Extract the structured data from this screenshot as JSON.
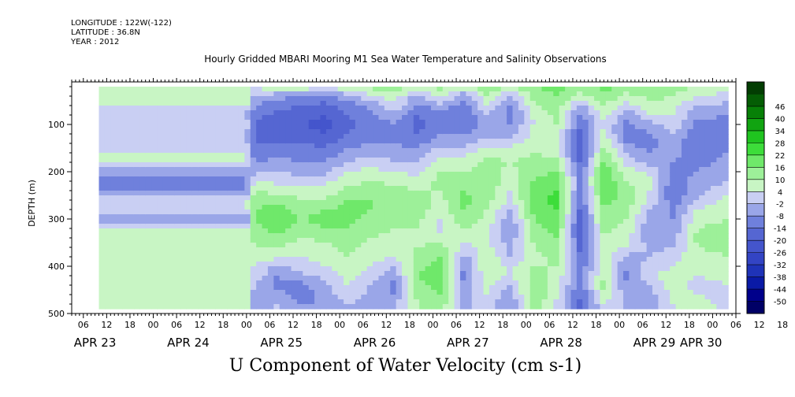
{
  "meta": {
    "longitude": "LONGITUDE : 122W(-122)",
    "latitude": "LATITUDE : 36.8N",
    "year": "YEAR : 2012"
  },
  "chart_data": {
    "type": "heatmap",
    "title": "Hourly Gridded MBARI Mooring M1 Sea Water Temperature and Salinity Observations",
    "xlabel": "U Component of Water Velocity (cm s-1)",
    "ylabel": "DEPTH (m)",
    "x_unit": "hours since APR 23 00:00 (2012)",
    "xlim": [
      3,
      174
    ],
    "ylim": [
      500,
      10
    ],
    "y_ticks": [
      100,
      200,
      300,
      400,
      500
    ],
    "x_hour_ticks": [
      "06",
      "12",
      "18",
      "00",
      "06",
      "12",
      "18",
      "00",
      "06",
      "12",
      "18",
      "00",
      "06",
      "12",
      "18",
      "00",
      "06",
      "12",
      "18",
      "00",
      "06",
      "12",
      "18",
      "00",
      "06",
      "12",
      "18",
      "00",
      "06",
      "12",
      "18",
      "00",
      "06"
    ],
    "x_date_labels": [
      {
        "label": "APR 23",
        "hour": 9
      },
      {
        "label": "APR 24",
        "hour": 33
      },
      {
        "label": "APR 25",
        "hour": 57
      },
      {
        "label": "APR 26",
        "hour": 81
      },
      {
        "label": "APR 27",
        "hour": 105
      },
      {
        "label": "APR 28",
        "hour": 129
      },
      {
        "label": "APR 29",
        "hour": 153
      },
      {
        "label": "APR 30",
        "hour": 165
      }
    ],
    "colorbar": {
      "levels": [
        -50,
        -44,
        -38,
        -32,
        -26,
        -20,
        -14,
        -8,
        -2,
        4,
        10,
        16,
        22,
        28,
        34,
        40,
        46
      ],
      "colors": [
        "#000066",
        "#00008b",
        "#0a1aa6",
        "#1f33b8",
        "#3344c4",
        "#4455cc",
        "#5566d2",
        "#6f80dc",
        "#9aa6e8",
        "#c9cff3",
        "#c8f5c4",
        "#9df099",
        "#6fe86a",
        "#3ddd3a",
        "#1fc41f",
        "#11a411",
        "#078007",
        "#045d04",
        "#023d02"
      ]
    },
    "data_range": {
      "x_start": 10,
      "x_end": 172,
      "depth_top": 20,
      "depth_bottom": 485
    },
    "profiles": [
      {
        "hour": 10,
        "u": [
          5,
          7,
          6,
          -3,
          2,
          -1,
          -2,
          5,
          6,
          -7,
          -9,
          -10,
          4,
          2,
          -8,
          4,
          7,
          6,
          6,
          5,
          6,
          6,
          5,
          7,
          7
        ]
      },
      {
        "hour": 48,
        "u": [
          5,
          7,
          6,
          -3,
          2,
          -1,
          -2,
          5,
          6,
          -7,
          -9,
          -10,
          4,
          2,
          -8,
          4,
          7,
          6,
          6,
          5,
          6,
          6,
          5,
          7,
          7
        ]
      },
      {
        "hour": 50,
        "u": [
          6,
          -3,
          -8,
          -12,
          -15,
          -16,
          -15,
          -12,
          -8,
          -3,
          4,
          10,
          14,
          16,
          16,
          15,
          12,
          10,
          8,
          4,
          2,
          -2,
          -4,
          -6,
          -5
        ]
      },
      {
        "hour": 56,
        "u": [
          8,
          -6,
          -12,
          -16,
          -18,
          -17,
          -14,
          -10,
          -6,
          -2,
          2,
          8,
          14,
          18,
          20,
          18,
          14,
          10,
          6,
          -4,
          -8,
          -10,
          -6,
          -2,
          2
        ]
      },
      {
        "hour": 62,
        "u": [
          10,
          -8,
          -14,
          -18,
          -20,
          -18,
          -14,
          -10,
          -8,
          -4,
          2,
          6,
          10,
          14,
          16,
          14,
          10,
          6,
          4,
          2,
          -4,
          -10,
          -12,
          -8,
          -4
        ]
      },
      {
        "hour": 68,
        "u": [
          6,
          -10,
          -16,
          -20,
          -22,
          -20,
          -16,
          -12,
          -8,
          -4,
          2,
          6,
          10,
          16,
          18,
          16,
          12,
          8,
          6,
          4,
          0,
          -4,
          -6,
          -8,
          -6
        ]
      },
      {
        "hour": 74,
        "u": [
          8,
          -4,
          -12,
          -14,
          -16,
          -14,
          -10,
          -6,
          -2,
          4,
          8,
          12,
          16,
          18,
          18,
          16,
          14,
          12,
          10,
          8,
          6,
          4,
          2,
          -2,
          -4
        ]
      },
      {
        "hour": 80,
        "u": [
          12,
          4,
          -6,
          -10,
          -12,
          -10,
          -8,
          -4,
          2,
          6,
          10,
          14,
          16,
          16,
          14,
          12,
          10,
          8,
          6,
          4,
          2,
          -2,
          -4,
          -6,
          -4
        ]
      },
      {
        "hour": 86,
        "u": [
          14,
          8,
          2,
          -4,
          -8,
          -10,
          -8,
          -6,
          -2,
          4,
          8,
          12,
          14,
          14,
          12,
          10,
          8,
          6,
          4,
          -2,
          -6,
          -10,
          -8,
          -4,
          -2
        ]
      },
      {
        "hour": 92,
        "u": [
          10,
          -4,
          -10,
          -14,
          -16,
          -14,
          -10,
          -6,
          -2,
          2,
          6,
          10,
          12,
          14,
          12,
          10,
          8,
          10,
          12,
          14,
          16,
          14,
          12,
          10,
          8
        ]
      },
      {
        "hour": 98,
        "u": [
          12,
          6,
          -4,
          -10,
          -12,
          -8,
          -4,
          2,
          6,
          10,
          12,
          10,
          8,
          6,
          4,
          2,
          8,
          12,
          16,
          18,
          20,
          18,
          16,
          14,
          10
        ]
      },
      {
        "hour": 104,
        "u": [
          8,
          -6,
          -12,
          -14,
          -12,
          -8,
          -4,
          2,
          6,
          10,
          14,
          16,
          18,
          16,
          14,
          10,
          6,
          2,
          -4,
          -8,
          -10,
          -8,
          -6,
          -4,
          -2
        ]
      },
      {
        "hour": 110,
        "u": [
          14,
          10,
          4,
          -2,
          -6,
          -4,
          2,
          8,
          12,
          14,
          16,
          14,
          12,
          10,
          8,
          6,
          4,
          6,
          8,
          10,
          8,
          6,
          4,
          2,
          -2
        ]
      },
      {
        "hour": 116,
        "u": [
          10,
          -2,
          -8,
          -10,
          -8,
          -4,
          2,
          6,
          10,
          8,
          6,
          4,
          2,
          -2,
          -6,
          -8,
          -6,
          -4,
          -2,
          2,
          4,
          -2,
          -6,
          -8,
          -6
        ]
      },
      {
        "hour": 122,
        "u": [
          16,
          12,
          8,
          6,
          4,
          6,
          8,
          10,
          12,
          14,
          16,
          18,
          20,
          18,
          16,
          14,
          12,
          10,
          8,
          10,
          12,
          14,
          16,
          14,
          12
        ]
      },
      {
        "hour": 128,
        "u": [
          18,
          16,
          14,
          12,
          10,
          8,
          6,
          8,
          12,
          16,
          20,
          22,
          24,
          22,
          20,
          18,
          16,
          14,
          12,
          10,
          8,
          6,
          4,
          2,
          4
        ]
      },
      {
        "hour": 134,
        "u": [
          14,
          8,
          -4,
          -10,
          -14,
          -18,
          -20,
          -18,
          -16,
          -12,
          -10,
          -12,
          -14,
          -16,
          -18,
          -20,
          -18,
          -16,
          -14,
          -12,
          -10,
          -12,
          -14,
          -16,
          -14
        ]
      },
      {
        "hour": 140,
        "u": [
          18,
          14,
          10,
          6,
          4,
          6,
          10,
          14,
          18,
          20,
          22,
          20,
          18,
          16,
          14,
          12,
          10,
          8,
          6,
          8,
          10,
          12,
          8,
          4,
          2
        ]
      },
      {
        "hour": 146,
        "u": [
          14,
          8,
          2,
          -6,
          -10,
          -12,
          -8,
          -4,
          2,
          6,
          10,
          12,
          14,
          12,
          10,
          8,
          6,
          4,
          -4,
          -8,
          -10,
          -8,
          -6,
          -4,
          -2
        ]
      },
      {
        "hour": 152,
        "u": [
          16,
          12,
          8,
          4,
          -4,
          -8,
          -10,
          -8,
          -4,
          2,
          6,
          4,
          2,
          -2,
          -6,
          -8,
          -6,
          -4,
          -2,
          2,
          4,
          -2,
          -4,
          -6,
          -8
        ]
      },
      {
        "hour": 158,
        "u": [
          14,
          10,
          6,
          4,
          2,
          -2,
          -4,
          -6,
          -8,
          -10,
          -12,
          -14,
          -12,
          -10,
          -8,
          -6,
          -4,
          -2,
          2,
          4,
          6,
          8,
          6,
          4,
          2
        ]
      },
      {
        "hour": 164,
        "u": [
          10,
          4,
          -2,
          -6,
          -10,
          -12,
          -14,
          -12,
          -10,
          -8,
          -6,
          -4,
          -2,
          4,
          8,
          10,
          12,
          10,
          8,
          6,
          4,
          2,
          4,
          6,
          8
        ]
      },
      {
        "hour": 172,
        "u": [
          6,
          2,
          -4,
          -8,
          -10,
          -12,
          -10,
          -8,
          -6,
          -4,
          -2,
          2,
          6,
          8,
          10,
          12,
          14,
          12,
          10,
          8,
          6,
          4,
          2,
          2,
          4
        ]
      }
    ],
    "profile_depths": [
      20,
      40,
      60,
      80,
      100,
      120,
      140,
      160,
      180,
      200,
      220,
      240,
      260,
      280,
      300,
      320,
      340,
      360,
      380,
      400,
      420,
      440,
      460,
      480,
      500
    ]
  }
}
